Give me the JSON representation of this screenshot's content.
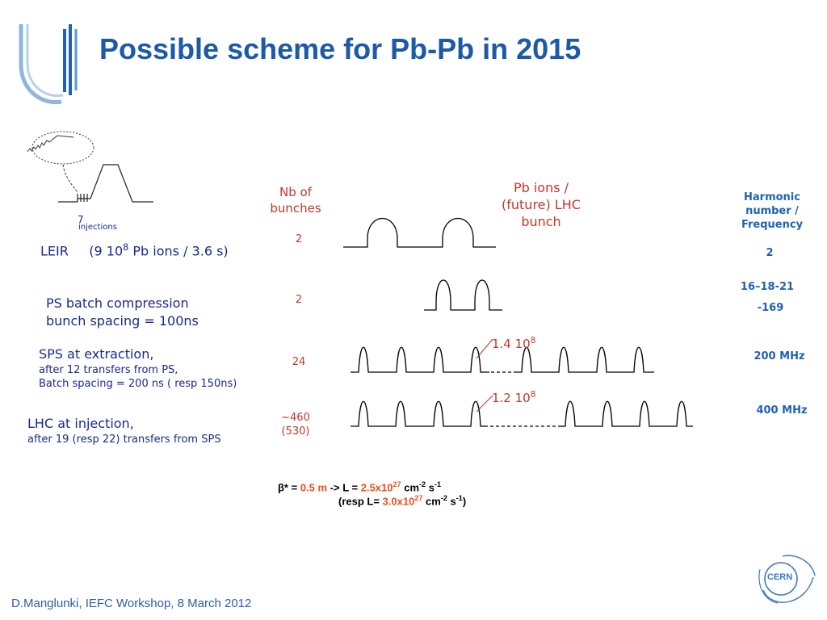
{
  "title": "Possible scheme for Pb-Pb in 2015",
  "footer": "D.Manglunki, IEFC Workshop, 8 March 2012",
  "logo_right": "CERN",
  "inset": {
    "count": "7",
    "caption": "injections"
  },
  "headers": {
    "nb_bunches": [
      "Nb of",
      "bunches"
    ],
    "pb_ions": [
      "Pb ions /",
      "(future) LHC",
      "bunch"
    ],
    "harmonic": [
      "Harmonic",
      "number /",
      "Frequency"
    ]
  },
  "rows": [
    {
      "stage_parts": [
        "LEIR",
        "(9 10",
        "8",
        " Pb ions / 3.6 s)"
      ],
      "nb": "2",
      "freq": [
        "2"
      ]
    },
    {
      "stage_lines": [
        "PS batch compression",
        "bunch spacing = 100ns"
      ],
      "nb": "2",
      "freq": [
        "16–18-21",
        "-169"
      ]
    },
    {
      "stage_main": "SPS at  extraction,",
      "stage_subs": [
        "after 12 transfers from PS,",
        "Batch spacing = 200 ns ( resp 150ns)"
      ],
      "nb": "24",
      "freq": [
        "200 MHz"
      ],
      "bunch_label": {
        "mantissa": "1.4 10",
        "exp": "8"
      }
    },
    {
      "stage_main": "LHC at injection,",
      "stage_subs": [
        "after  19 (resp 22) transfers from SPS"
      ],
      "nb": [
        "~460",
        "(530)"
      ],
      "freq": [
        "400 MHz"
      ],
      "bunch_label": {
        "mantissa": "1.2 10",
        "exp": "8"
      }
    }
  ],
  "formula": {
    "line1": {
      "beta": "β* = ",
      "beta_val": "0.5 m",
      "arrow": "  -> L = ",
      "lum": "2.5x10",
      "lum_exp": "27",
      "unit": " cm",
      "unit_exp1": "-2",
      "unit_mid": " s",
      "unit_exp2": "-1"
    },
    "line2": {
      "open": "(resp L= ",
      "lum": "3.0x10",
      "lum_exp": "27",
      "unit": " cm",
      "unit_exp1": "-2",
      "unit_mid": " s",
      "unit_exp2": "-1",
      "close": ")"
    }
  },
  "colors": {
    "title": "#1c5aa8",
    "red": "#c0392b",
    "blue": "#1f63b0",
    "orange": "#e8501a"
  }
}
